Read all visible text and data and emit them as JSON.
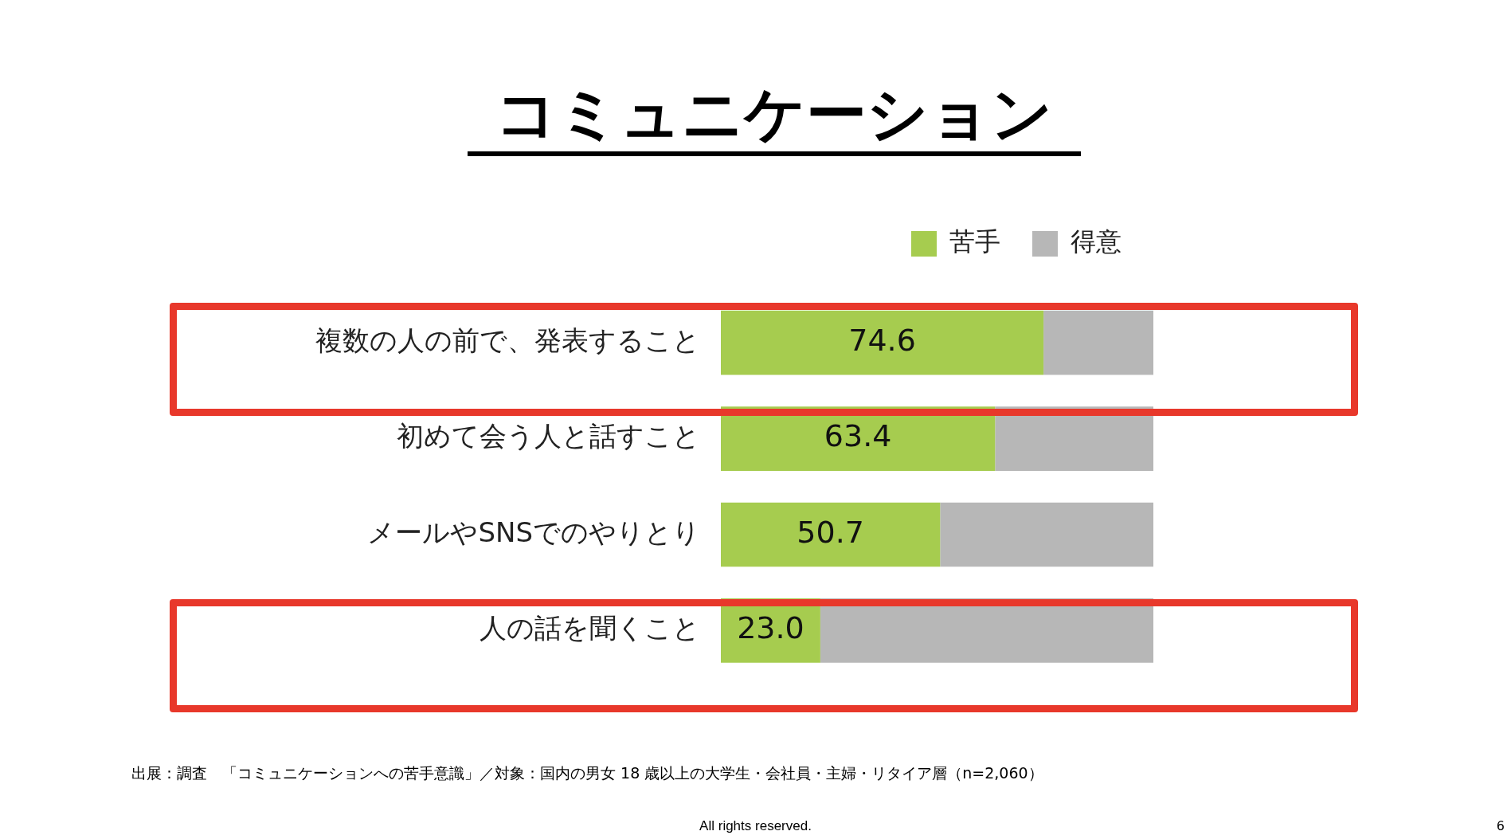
{
  "chart_data": {
    "type": "bar",
    "orientation": "horizontal",
    "stacked": true,
    "title": "コミュニケーション",
    "categories": [
      "複数の人の前で、発表すること",
      "初めて会う人と話すこと",
      "メールやSNSでのやりとり",
      "人の話を聞くこと"
    ],
    "series": [
      {
        "name": "苦手",
        "color": "#a6cc4f",
        "values": [
          74.6,
          63.4,
          50.7,
          23.0
        ],
        "value_labels": [
          "74.6",
          "63.4",
          "50.7",
          "23.0"
        ]
      },
      {
        "name": "得意",
        "color": "#b7b7b7",
        "values": [
          25.4,
          36.6,
          49.3,
          77.0
        ]
      }
    ],
    "xlim": [
      0,
      100
    ],
    "tick_labels": "y",
    "grid": false,
    "legend": "top right",
    "annotations": [
      "出展：調査　「コミュニケーションへの苦手意識」／対象：国内の男女 18 歳以上の大学生・会社員・主婦・リタイア層（n=2,060）",
      "All rights reserved.",
      "6"
    ]
  }
}
